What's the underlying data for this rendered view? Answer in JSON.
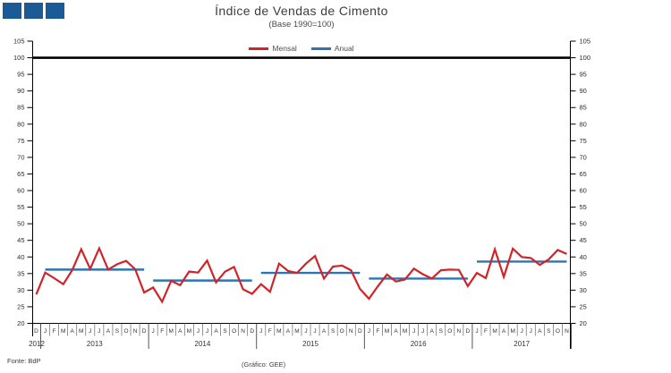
{
  "header": {
    "title": "Índice de Vendas de Cimento",
    "subtitle": "(Base 1990=100)",
    "logo_color": "#1a5a96"
  },
  "legend": {
    "mensal": {
      "label": "Mensal",
      "color": "#d02428"
    },
    "anual": {
      "label": "Anual",
      "color": "#2e74b5"
    }
  },
  "footer": {
    "source": "Fonte: BdP",
    "credit": "(Gráfico: GEE)"
  },
  "chart_data": {
    "type": "line",
    "title": "Índice de Vendas de Cimento",
    "subtitle": "(Base 1990=100)",
    "ylim": [
      20,
      105
    ],
    "y_ticks": [
      20,
      25,
      30,
      35,
      40,
      45,
      50,
      55,
      60,
      65,
      70,
      75,
      80,
      85,
      90,
      95,
      100,
      105
    ],
    "baseline": 100,
    "grid": false,
    "legend_position": "top-center",
    "axis_color": "#000000",
    "baseline_color": "#000000",
    "x_labels": [
      "D",
      "J",
      "F",
      "M",
      "A",
      "M",
      "J",
      "J",
      "A",
      "S",
      "O",
      "N",
      "D",
      "J",
      "F",
      "M",
      "A",
      "M",
      "J",
      "J",
      "A",
      "S",
      "O",
      "N",
      "D",
      "J",
      "F",
      "M",
      "A",
      "M",
      "J",
      "J",
      "A",
      "S",
      "O",
      "N",
      "D",
      "J",
      "F",
      "M",
      "A",
      "M",
      "J",
      "J",
      "A",
      "S",
      "O",
      "N",
      "D",
      "J",
      "F",
      "M",
      "A",
      "M",
      "J",
      "J",
      "A",
      "S",
      "O",
      "N"
    ],
    "years": [
      {
        "label": "2012",
        "count": 1
      },
      {
        "label": "2013",
        "count": 12
      },
      {
        "label": "2014",
        "count": 12
      },
      {
        "label": "2015",
        "count": 12
      },
      {
        "label": "2016",
        "count": 12
      },
      {
        "label": "2017",
        "count": 11
      }
    ],
    "series": [
      {
        "name": "Mensal",
        "color": "#d02428",
        "values": [
          28.7,
          35.3,
          33.6,
          31.8,
          36.0,
          42.3,
          36.4,
          42.6,
          36.2,
          37.8,
          38.8,
          36.3,
          29.3,
          30.8,
          26.5,
          32.8,
          31.5,
          35.6,
          35.3,
          38.9,
          32.3,
          35.6,
          37.0,
          30.3,
          28.9,
          31.8,
          29.5,
          38.0,
          35.8,
          35.2,
          38.0,
          40.3,
          33.5,
          37.1,
          37.4,
          36.0,
          30.4,
          27.4,
          31.2,
          34.7,
          32.6,
          33.2,
          36.5,
          34.8,
          33.5,
          36.0,
          36.2,
          36.1,
          31.2,
          35.2,
          33.6,
          42.3,
          34.0,
          42.5,
          40.0,
          39.7,
          37.6,
          39.3,
          42.1,
          40.9
        ]
      },
      {
        "name": "Anual",
        "color": "#2e74b5",
        "segments": [
          {
            "year": "2013",
            "value": 36.2,
            "start": 1,
            "end": 12
          },
          {
            "year": "2014",
            "value": 32.9,
            "start": 13,
            "end": 24
          },
          {
            "year": "2015",
            "value": 35.2,
            "start": 25,
            "end": 36
          },
          {
            "year": "2016",
            "value": 33.5,
            "start": 37,
            "end": 48
          },
          {
            "year": "2017",
            "value": 38.6,
            "start": 49,
            "end": 59
          }
        ]
      }
    ]
  }
}
